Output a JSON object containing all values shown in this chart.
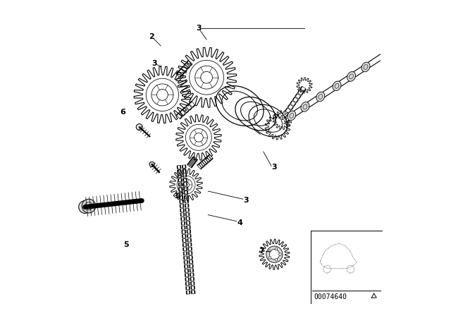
{
  "bg_color": "#ffffff",
  "line_color": "#000000",
  "diagram_code": "00074640",
  "figsize": [
    6.4,
    4.48
  ],
  "dpi": 100,
  "labels": {
    "1": [
      0.345,
      0.38,
      "left"
    ],
    "2": [
      0.265,
      0.885,
      "center"
    ],
    "3a": [
      0.415,
      0.91,
      "center"
    ],
    "3b": [
      0.655,
      0.47,
      "center"
    ],
    "3c": [
      0.565,
      0.365,
      "center"
    ],
    "4": [
      0.545,
      0.295,
      "center"
    ],
    "5": [
      0.19,
      0.225,
      "center"
    ],
    "6": [
      0.175,
      0.65,
      "center"
    ],
    "7": [
      0.615,
      0.205,
      "center"
    ]
  }
}
